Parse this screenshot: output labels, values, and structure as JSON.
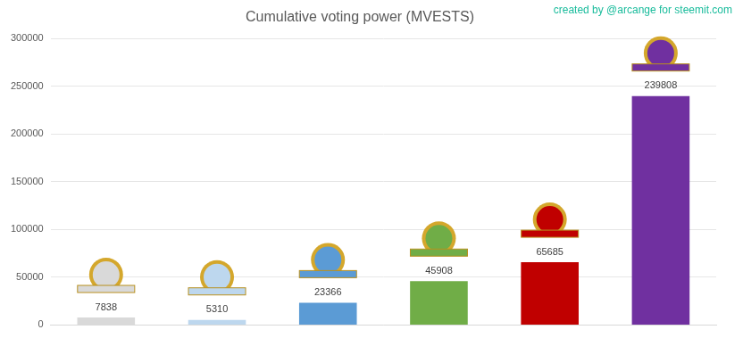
{
  "chart_data": {
    "type": "bar",
    "title": "Cumulative voting power (MVESTS)",
    "annotations": [
      "created by @arcange for steemit.com"
    ],
    "categories": [
      null,
      null,
      null,
      null,
      null,
      null
    ],
    "values": [
      7838,
      5310,
      23366,
      45908,
      65685,
      239808
    ],
    "colors": [
      "#d9d9d9",
      "#bdd7ee",
      "#5b9bd5",
      "#70ad47",
      "#c00000",
      "#7030a0"
    ],
    "ylim": [
      0,
      300000
    ],
    "yticks": [
      0,
      50000,
      100000,
      150000,
      200000,
      250000,
      300000
    ],
    "grid": true,
    "data_labels": true,
    "tick_labels": "y"
  }
}
